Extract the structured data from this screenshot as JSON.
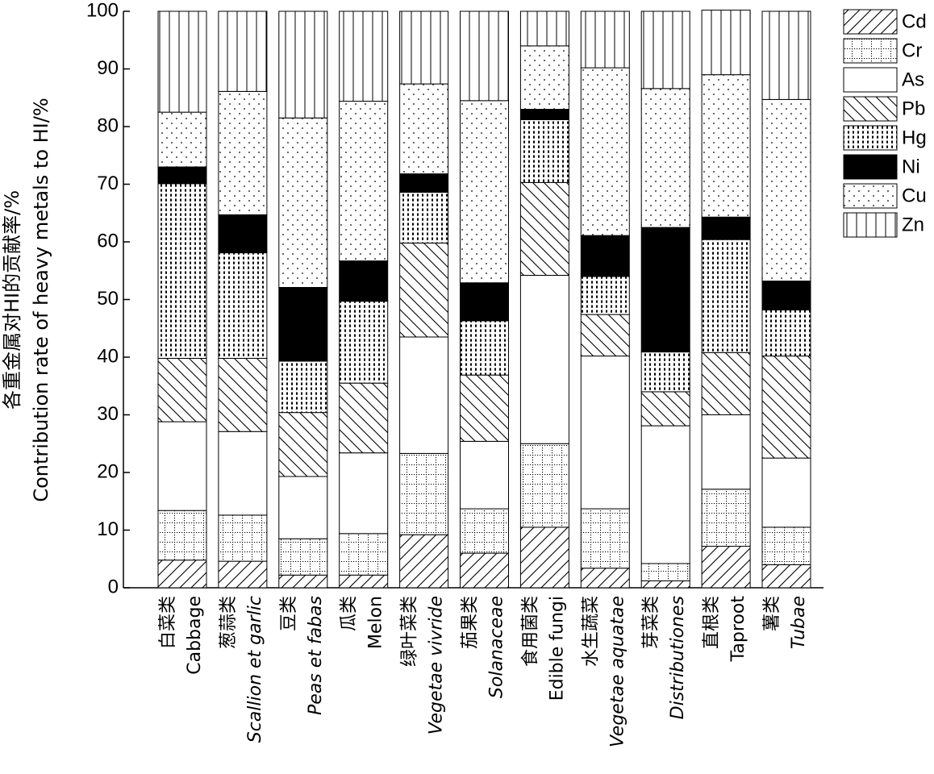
{
  "chart_data": {
    "type": "bar",
    "stacked": true,
    "percent": true,
    "ylabel": [
      "各重金属对HI的贡献率/%",
      "Contribution rate of heavy metals to HI/%"
    ],
    "xlabel": "",
    "ylim": [
      0,
      100
    ],
    "yticks": [
      0,
      10,
      20,
      30,
      40,
      50,
      60,
      70,
      80,
      90,
      100
    ],
    "grid": false,
    "legend_position": "top-right",
    "categories": [
      {
        "zh": "白菜类",
        "en": "Cabbage",
        "en_italic": false
      },
      {
        "zh": "葱蒜类",
        "en": "Scallion et garlic",
        "en_italic": true
      },
      {
        "zh": "豆类",
        "en": "Peas et fabas",
        "en_italic": true
      },
      {
        "zh": "瓜类",
        "en": "Melon",
        "en_italic": false
      },
      {
        "zh": "绿叶菜类",
        "en": "Vegetae vivride",
        "en_italic": true
      },
      {
        "zh": "茄果类",
        "en": "Solanaceae",
        "en_italic": true
      },
      {
        "zh": "食用菌类",
        "en": "Edible fungi",
        "en_italic": false
      },
      {
        "zh": "水生蔬菜",
        "en": "Vegetae aquatae",
        "en_italic": true
      },
      {
        "zh": "芽菜类",
        "en": "Distributiones",
        "en_italic": true
      },
      {
        "zh": "直根类",
        "en": "Taproot",
        "en_italic": false
      },
      {
        "zh": "薯类",
        "en": "Tubae",
        "en_italic": true
      }
    ],
    "series": [
      {
        "name": "Cd",
        "pattern": "diag-right",
        "values": [
          4.8,
          4.6,
          2.2,
          2.2,
          9.2,
          6.0,
          10.5,
          3.4,
          1.2,
          7.2,
          4.0
        ]
      },
      {
        "name": "Cr",
        "pattern": "dot-grid",
        "values": [
          8.6,
          8.0,
          6.3,
          7.2,
          14.1,
          7.7,
          14.5,
          10.3,
          3.0,
          9.9,
          6.5
        ]
      },
      {
        "name": "As",
        "pattern": "blank",
        "values": [
          15.4,
          14.5,
          10.8,
          14.0,
          20.2,
          11.7,
          29.2,
          26.5,
          23.9,
          12.9,
          12.0
        ]
      },
      {
        "name": "Pb",
        "pattern": "diag-left",
        "values": [
          11.0,
          12.7,
          11.1,
          12.1,
          16.3,
          11.5,
          16.1,
          7.2,
          5.9,
          10.8,
          17.7
        ]
      },
      {
        "name": "Hg",
        "pattern": "dense-dot",
        "values": [
          30.3,
          18.3,
          8.9,
          14.2,
          8.8,
          9.4,
          10.9,
          6.6,
          6.9,
          19.6,
          8.0
        ]
      },
      {
        "name": "Ni",
        "pattern": "solid",
        "values": [
          2.9,
          6.6,
          12.8,
          7.0,
          3.2,
          6.6,
          1.8,
          7.1,
          21.6,
          3.9,
          5.0
        ]
      },
      {
        "name": "Cu",
        "pattern": "sparse-dot",
        "values": [
          9.5,
          21.4,
          29.4,
          27.7,
          15.6,
          31.6,
          11.0,
          29.1,
          24.1,
          24.7,
          31.5
        ]
      },
      {
        "name": "Zn",
        "pattern": "vertical",
        "values": [
          17.5,
          13.9,
          18.5,
          15.6,
          12.6,
          15.5,
          6.0,
          9.8,
          13.4,
          11.2,
          15.3
        ]
      }
    ]
  }
}
